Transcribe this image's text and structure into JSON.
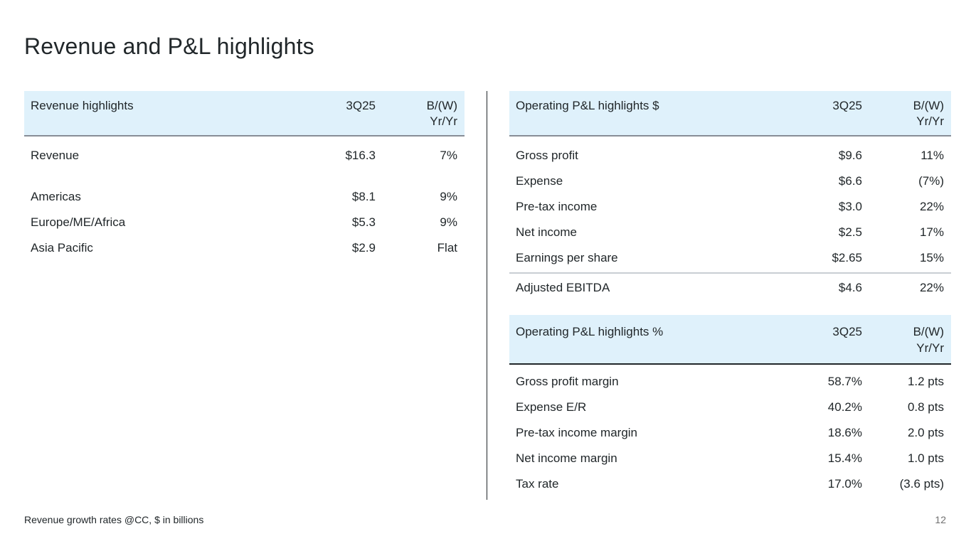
{
  "slide": {
    "title": "Revenue and P&L highlights",
    "footer_note": "Revenue growth rates @CC, $ in billions",
    "page_number": "12"
  },
  "colors": {
    "header_bg": "#dff1fb",
    "rule_gray": "#878d96",
    "rule_dark": "#21272a",
    "divider_light": "#c9ced3",
    "text": "#21272a",
    "page_number": "#6f6f6f"
  },
  "revenue_table": {
    "title": "Revenue highlights",
    "col_period": "3Q25",
    "col_change_line1": "B/(W)",
    "col_change_line2": "Yr/Yr",
    "rows": [
      {
        "label": "Revenue",
        "value": "$16.3",
        "change": "7%"
      },
      {
        "label": "Americas",
        "value": "$8.1",
        "change": "9%"
      },
      {
        "label": "Europe/ME/Africa",
        "value": "$5.3",
        "change": "9%"
      },
      {
        "label": "Asia Pacific",
        "value": "$2.9",
        "change": "Flat"
      }
    ]
  },
  "pnl_dollar_table": {
    "title": "Operating P&L highlights $",
    "col_period": "3Q25",
    "col_change_line1": "B/(W)",
    "col_change_line2": "Yr/Yr",
    "rows": [
      {
        "label": "Gross profit",
        "value": "$9.6",
        "change": "11%"
      },
      {
        "label": "Expense",
        "value": "$6.6",
        "change": "(7%)"
      },
      {
        "label": "Pre-tax income",
        "value": "$3.0",
        "change": "22%"
      },
      {
        "label": "Net income",
        "value": "$2.5",
        "change": "17%"
      },
      {
        "label": "Earnings per share",
        "value": "$2.65",
        "change": "15%"
      }
    ],
    "summary_row": {
      "label": "Adjusted EBITDA",
      "value": "$4.6",
      "change": "22%"
    }
  },
  "pnl_percent_table": {
    "title": "Operating P&L highlights %",
    "col_period": "3Q25",
    "col_change_line1": "B/(W)",
    "col_change_line2": "Yr/Yr",
    "rows": [
      {
        "label": "Gross profit margin",
        "value": "58.7%",
        "change": "1.2 pts"
      },
      {
        "label": "Expense E/R",
        "value": "40.2%",
        "change": "0.8 pts"
      },
      {
        "label": "Pre-tax income margin",
        "value": "18.6%",
        "change": "2.0 pts"
      },
      {
        "label": "Net income margin",
        "value": "15.4%",
        "change": "1.0 pts"
      },
      {
        "label": "Tax rate",
        "value": "17.0%",
        "change": "(3.6 pts)"
      }
    ]
  }
}
